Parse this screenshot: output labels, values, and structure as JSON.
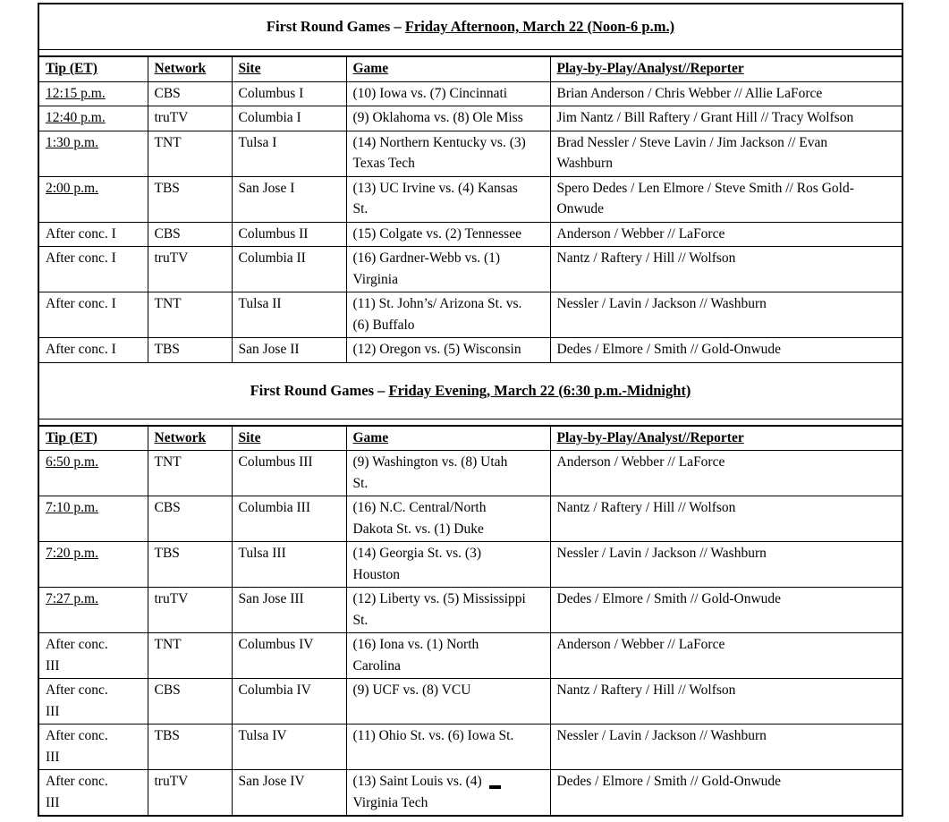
{
  "document": {
    "sections": [
      {
        "title_plain": "First Round Games – ",
        "title_underlined": "Friday Afternoon, March 22 (Noon-6 p.m.)",
        "columns": [
          "Tip (ET)",
          "Network",
          "Site",
          "Game",
          "Play-by-Play/Analyst//Reporter"
        ],
        "rows": [
          {
            "tip": [
              "12:15 p.m."
            ],
            "time": true,
            "network": "CBS",
            "site": "Columbus I",
            "game": [
              "(10) Iowa vs. (7) Cincinnati"
            ],
            "crew": [
              "Brian Anderson / Chris Webber // Allie LaForce"
            ]
          },
          {
            "tip": [
              "12:40 p.m."
            ],
            "time": true,
            "network": "truTV",
            "site": "Columbia I",
            "game": [
              "(9) Oklahoma vs. (8) Ole Miss"
            ],
            "crew": [
              "Jim Nantz / Bill Raftery / Grant Hill // Tracy Wolfson"
            ]
          },
          {
            "tip": [
              "1:30 p.m."
            ],
            "time": true,
            "network": "TNT",
            "site": "Tulsa I",
            "game": [
              "(14) Northern Kentucky vs. (3)",
              "Texas Tech"
            ],
            "crew": [
              "Brad Nessler / Steve Lavin / Jim Jackson // Evan",
              "Washburn"
            ]
          },
          {
            "tip": [
              "2:00 p.m."
            ],
            "time": true,
            "network": "TBS",
            "site": "San Jose I",
            "game": [
              "(13) UC Irvine vs. (4) Kansas",
              "St."
            ],
            "crew": [
              "Spero Dedes / Len Elmore / Steve Smith // Ros Gold-",
              "Onwude"
            ]
          },
          {
            "tip": [
              "After conc. I"
            ],
            "network": "CBS",
            "site": "Columbus II",
            "game": [
              "(15) Colgate vs. (2) Tennessee"
            ],
            "crew": [
              "Anderson / Webber // LaForce"
            ]
          },
          {
            "tip": [
              "After conc. I"
            ],
            "network": "truTV",
            "site": "Columbia II",
            "game": [
              "(16) Gardner-Webb vs. (1)",
              "Virginia"
            ],
            "crew": [
              "Nantz / Raftery / Hill // Wolfson"
            ]
          },
          {
            "tip": [
              "After conc. I"
            ],
            "network": "TNT",
            "site": "Tulsa II",
            "game": [
              "(11) St. John’s/ Arizona St. vs.",
              "(6) Buffalo"
            ],
            "crew": [
              "Nessler / Lavin / Jackson // Washburn"
            ]
          },
          {
            "tip": [
              "After conc. I"
            ],
            "network": "TBS",
            "site": "San Jose II",
            "game": [
              "(12) Oregon vs. (5) Wisconsin"
            ],
            "crew": [
              "Dedes / Elmore / Smith // Gold-Onwude"
            ]
          }
        ]
      },
      {
        "title_plain": "First Round Games – ",
        "title_underlined": "Friday Evening, March 22 (6:30 p.m.-Midnight)",
        "columns": [
          "Tip (ET)",
          "Network",
          "Site",
          "Game",
          "Play-by-Play/Analyst//Reporter"
        ],
        "rows": [
          {
            "tip": [
              "6:50 p.m."
            ],
            "time": true,
            "network": "TNT",
            "site": "Columbus III",
            "game": [
              "(9) Washington vs. (8) Utah",
              "St."
            ],
            "crew": [
              "Anderson / Webber // LaForce"
            ]
          },
          {
            "tip": [
              "7:10 p.m."
            ],
            "time": true,
            "network": "CBS",
            "site": "Columbia III",
            "game": [
              "(16) N.C. Central/North",
              "Dakota St. vs. (1) Duke"
            ],
            "crew": [
              "Nantz / Raftery / Hill // Wolfson"
            ]
          },
          {
            "tip": [
              "7:20 p.m."
            ],
            "time": true,
            "network": "TBS",
            "site": "Tulsa III",
            "game": [
              "(14) Georgia St. vs. (3)",
              "Houston"
            ],
            "crew": [
              "Nessler / Lavin / Jackson // Washburn"
            ]
          },
          {
            "tip": [
              "7:27 p.m."
            ],
            "time": true,
            "network": "truTV",
            "site": "San Jose III",
            "game": [
              "(12) Liberty vs. (5) Mississippi",
              "St."
            ],
            "crew": [
              "Dedes / Elmore / Smith // Gold-Onwude"
            ]
          },
          {
            "tip": [
              "After conc.",
              "III"
            ],
            "network": "TNT",
            "site": "Columbus IV",
            "game": [
              "(16) Iona vs. (1) North",
              "Carolina"
            ],
            "crew": [
              "Anderson / Webber // LaForce"
            ]
          },
          {
            "tip": [
              "After conc.",
              "III"
            ],
            "network": "CBS",
            "site": "Columbia IV",
            "game": [
              "(9) UCF vs. (8) VCU"
            ],
            "crew": [
              "Nantz / Raftery / Hill // Wolfson"
            ]
          },
          {
            "tip": [
              "After conc.",
              "III"
            ],
            "network": "TBS",
            "site": "Tulsa IV",
            "game": [
              "(11) Ohio St. vs. (6) Iowa St."
            ],
            "crew": [
              "Nessler / Lavin / Jackson // Washburn"
            ]
          },
          {
            "tip": [
              "After conc.",
              "III"
            ],
            "network": "truTV",
            "site": "San Jose IV",
            "game": [
              "(13) Saint Louis vs. (4)",
              "Virginia Tech"
            ],
            "game_marker_after_line": 0,
            "crew": [
              "Dedes / Elmore / Smith // Gold-Onwude"
            ]
          }
        ]
      }
    ]
  }
}
